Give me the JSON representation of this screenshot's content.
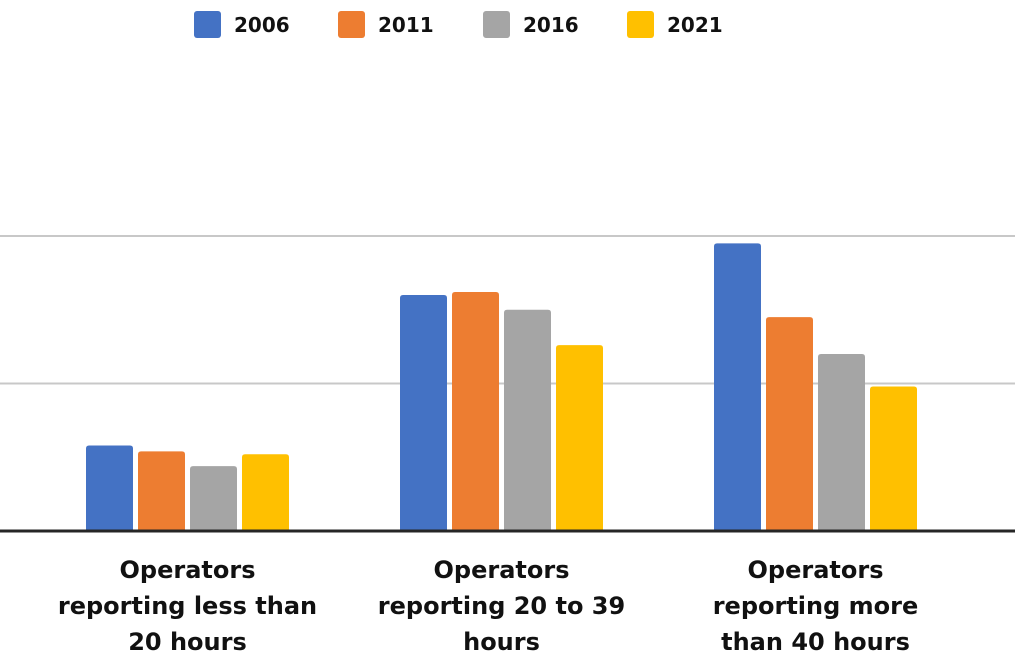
{
  "chart_data": {
    "type": "bar",
    "title": "",
    "xlabel": "",
    "ylabel": "",
    "categories": [
      [
        "Operators",
        "reporting less than",
        "20 hours"
      ],
      [
        "Operators",
        "reporting 20 to 39",
        "hours"
      ],
      [
        "Operators",
        "reporting more",
        "than 40 hours"
      ]
    ],
    "series": [
      {
        "name": "2006",
        "color": "#4472C4",
        "values": [
          58,
          160,
          195
        ]
      },
      {
        "name": "2011",
        "color": "#ED7D31",
        "values": [
          54,
          162,
          145
        ]
      },
      {
        "name": "2016",
        "color": "#A5A5A5",
        "values": [
          44,
          150,
          120
        ]
      },
      {
        "name": "2021",
        "color": "#FFC000",
        "values": [
          52,
          126,
          98
        ]
      }
    ],
    "ylim": [
      0,
      200
    ],
    "gridlines": [
      100,
      200
    ],
    "grid": true,
    "axis_tick_labels_visible": false,
    "legend": "top-center"
  }
}
